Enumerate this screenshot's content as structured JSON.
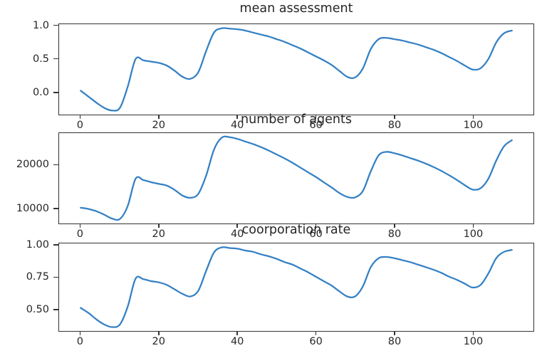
{
  "figure": {
    "background": "#ffffff",
    "text_color": "#262626",
    "spine_color": "#333333",
    "accent_line_color": "#3581c4"
  },
  "chart_data": [
    {
      "type": "line",
      "title": "mean assessment",
      "line_color": "#3581c4",
      "grid": false,
      "xlim": [
        -5.5,
        115.5
      ],
      "ylim": [
        -0.342,
        1.027
      ],
      "xticks": {
        "values": [
          0,
          20,
          40,
          60,
          80,
          100
        ],
        "labels": [
          "0",
          "20",
          "40",
          "60",
          "80",
          "100"
        ]
      },
      "yticks": {
        "values": [
          0.0,
          0.5,
          1.0
        ],
        "labels": [
          "0.0",
          "0.5",
          "1.0"
        ]
      },
      "x": [
        0,
        2,
        4,
        6,
        8,
        10,
        12,
        14,
        16,
        18,
        20,
        22,
        24,
        26,
        28,
        30,
        32,
        34,
        36,
        38,
        40,
        42,
        44,
        46,
        48,
        50,
        52,
        54,
        56,
        58,
        60,
        62,
        64,
        66,
        68,
        70,
        72,
        74,
        76,
        78,
        80,
        82,
        84,
        86,
        88,
        90,
        92,
        94,
        96,
        98,
        100,
        102,
        104,
        106,
        108,
        110
      ],
      "values": [
        0.02,
        -0.07,
        -0.16,
        -0.24,
        -0.28,
        -0.24,
        0.08,
        0.5,
        0.48,
        0.46,
        0.44,
        0.4,
        0.32,
        0.23,
        0.2,
        0.3,
        0.62,
        0.9,
        0.965,
        0.96,
        0.95,
        0.93,
        0.9,
        0.87,
        0.84,
        0.8,
        0.76,
        0.71,
        0.66,
        0.6,
        0.54,
        0.48,
        0.41,
        0.32,
        0.23,
        0.22,
        0.36,
        0.65,
        0.8,
        0.82,
        0.8,
        0.78,
        0.75,
        0.72,
        0.68,
        0.64,
        0.59,
        0.53,
        0.47,
        0.4,
        0.34,
        0.36,
        0.5,
        0.75,
        0.89,
        0.93
      ]
    },
    {
      "type": "line",
      "title": "number of agents",
      "line_color": "#3581c4",
      "grid": false,
      "xlim": [
        -5.5,
        115.5
      ],
      "ylim": [
        6455,
        27345
      ],
      "xticks": {
        "values": [
          0,
          20,
          40,
          60,
          80,
          100
        ],
        "labels": [
          "0",
          "20",
          "40",
          "60",
          "80",
          "100"
        ]
      },
      "yticks": {
        "values": [
          10000,
          20000
        ],
        "labels": [
          "10000",
          "20000"
        ]
      },
      "x": [
        0,
        2,
        4,
        6,
        8,
        10,
        12,
        14,
        16,
        18,
        20,
        22,
        24,
        26,
        28,
        30,
        32,
        34,
        36,
        38,
        40,
        42,
        44,
        46,
        48,
        50,
        52,
        54,
        56,
        58,
        60,
        62,
        64,
        66,
        68,
        70,
        72,
        74,
        76,
        78,
        80,
        82,
        84,
        86,
        88,
        90,
        92,
        94,
        96,
        98,
        100,
        102,
        104,
        106,
        108,
        110
      ],
      "values": [
        10100,
        9800,
        9300,
        8500,
        7600,
        7500,
        10500,
        16800,
        16500,
        16000,
        15600,
        15200,
        14200,
        12900,
        12400,
        13300,
        17500,
        23500,
        26300,
        26400,
        26000,
        25400,
        24800,
        24100,
        23300,
        22400,
        21500,
        20500,
        19400,
        18300,
        17200,
        16000,
        14800,
        13500,
        12600,
        12500,
        14000,
        18500,
        22200,
        23000,
        22700,
        22200,
        21600,
        21000,
        20300,
        19500,
        18600,
        17600,
        16500,
        15300,
        14300,
        14600,
        16800,
        21000,
        24300,
        25700
      ]
    },
    {
      "type": "line",
      "title": "coorporation rate",
      "line_color": "#3581c4",
      "grid": false,
      "xlim": [
        -5.5,
        115.5
      ],
      "ylim": [
        0.329,
        1.016
      ],
      "xticks": {
        "values": [
          0,
          20,
          40,
          60,
          80,
          100
        ],
        "labels": [
          "0",
          "20",
          "40",
          "60",
          "80",
          "100"
        ]
      },
      "yticks": {
        "values": [
          0.5,
          0.75,
          1.0
        ],
        "labels": [
          "0.50",
          "0.75",
          "1.00"
        ]
      },
      "x": [
        0,
        2,
        4,
        6,
        8,
        10,
        12,
        14,
        16,
        18,
        20,
        22,
        24,
        26,
        28,
        30,
        32,
        34,
        36,
        38,
        40,
        42,
        44,
        46,
        48,
        50,
        52,
        54,
        56,
        58,
        60,
        62,
        64,
        66,
        68,
        70,
        72,
        74,
        76,
        78,
        80,
        82,
        84,
        86,
        88,
        90,
        92,
        94,
        96,
        98,
        100,
        102,
        104,
        106,
        108,
        110
      ],
      "values": [
        0.51,
        0.47,
        0.42,
        0.38,
        0.36,
        0.38,
        0.52,
        0.74,
        0.735,
        0.72,
        0.71,
        0.69,
        0.655,
        0.62,
        0.6,
        0.645,
        0.8,
        0.945,
        0.985,
        0.98,
        0.975,
        0.96,
        0.95,
        0.93,
        0.915,
        0.895,
        0.87,
        0.85,
        0.82,
        0.79,
        0.755,
        0.72,
        0.685,
        0.64,
        0.6,
        0.6,
        0.68,
        0.83,
        0.9,
        0.91,
        0.9,
        0.885,
        0.87,
        0.85,
        0.83,
        0.81,
        0.785,
        0.755,
        0.73,
        0.7,
        0.67,
        0.69,
        0.78,
        0.9,
        0.95,
        0.965
      ]
    }
  ]
}
